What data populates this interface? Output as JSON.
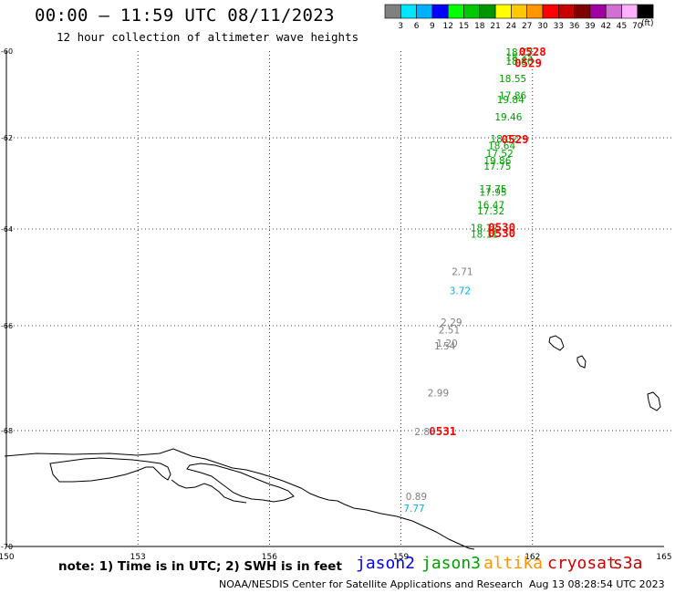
{
  "header": {
    "title": "00:00 – 11:59 UTC 08/11/2023",
    "subtitle": "12 hour collection of altimeter wave heights"
  },
  "legend": {
    "units": "(ft)",
    "ticks": [
      "3",
      "6",
      "9",
      "12",
      "15",
      "18",
      "21",
      "24",
      "27",
      "30",
      "33",
      "36",
      "39",
      "42",
      "45",
      "70"
    ],
    "colors": [
      "#808080",
      "#00e5ff",
      "#00b0ff",
      "#0000ff",
      "#00ff00",
      "#00c800",
      "#009600",
      "#ffff00",
      "#ffc800",
      "#ff9600",
      "#ff0000",
      "#c80000",
      "#800000",
      "#a000a0",
      "#d070d0",
      "#ffb0ff",
      "#000000"
    ]
  },
  "footer": {
    "note": "note: 1) Time is in UTC; 2) SWH is in feet",
    "credit": "NOAA/NESDIS Center for Satellite Applications and Research",
    "timestamp": "Aug 13 08:28:54 UTC 2023",
    "satellites": [
      {
        "name": "jason2",
        "color": "#0000ff"
      },
      {
        "name": "jason3",
        "color": "#00a000"
      },
      {
        "name": "altika",
        "color": "#ff9600"
      },
      {
        "name": "cryosat",
        "color": "#d00000"
      },
      {
        "name": "s3a",
        "color": "#c80000"
      }
    ]
  },
  "chart_data": {
    "type": "scatter",
    "title": "12 hour collection of altimeter wave heights",
    "x_ticks": [
      "150",
      "153",
      "156",
      "159",
      "162",
      "165"
    ],
    "y_ticks": [
      "-60",
      "-62",
      "-64",
      "-66",
      "-68",
      "-70"
    ],
    "xlim": [
      150,
      165
    ],
    "ylim": [
      -70,
      -60
    ],
    "grid": true,
    "series": [
      {
        "name": "jason3",
        "color": "#00a000",
        "points": [
          {
            "lon": 161.7,
            "lat": -60.1,
            "label": "18.77"
          },
          {
            "lon": 161.7,
            "lat": -60.22,
            "label": "18.35"
          },
          {
            "lon": 161.7,
            "lat": -60.32,
            "label": "18.86"
          },
          {
            "lon": 161.55,
            "lat": -60.72,
            "label": "18.55"
          },
          {
            "lon": 161.55,
            "lat": -61.1,
            "label": "17.86"
          },
          {
            "lon": 161.5,
            "lat": -61.2,
            "label": "19.84"
          },
          {
            "lon": 161.45,
            "lat": -61.6,
            "label": "19.46"
          },
          {
            "lon": 161.35,
            "lat": -62.1,
            "label": "18.02"
          },
          {
            "lon": 161.3,
            "lat": -62.25,
            "label": "18.64"
          },
          {
            "lon": 161.25,
            "lat": -62.42,
            "label": "17.52"
          },
          {
            "lon": 161.2,
            "lat": -62.58,
            "label": "19.86"
          },
          {
            "lon": 161.2,
            "lat": -62.7,
            "label": "17.75"
          },
          {
            "lon": 161.1,
            "lat": -63.2,
            "label": "17.75"
          },
          {
            "lon": 161.1,
            "lat": -63.27,
            "label": "17.95"
          },
          {
            "lon": 161.05,
            "lat": -63.55,
            "label": "16.47"
          },
          {
            "lon": 161.05,
            "lat": -63.68,
            "label": "17.32"
          },
          {
            "lon": 160.9,
            "lat": -64.05,
            "label": "18.12"
          },
          {
            "lon": 160.9,
            "lat": -64.18,
            "label": "18.11"
          }
        ]
      },
      {
        "name": "cryosat",
        "color": "#ff0000",
        "points": [
          {
            "lon": 162.0,
            "lat": -60.1,
            "label": "0528"
          },
          {
            "lon": 161.9,
            "lat": -60.37,
            "label": "0529"
          },
          {
            "lon": 161.6,
            "lat": -62.12,
            "label": "0529"
          },
          {
            "lon": 161.3,
            "lat": -64.05,
            "label": "0530"
          },
          {
            "lon": 161.3,
            "lat": -64.17,
            "label": "0530"
          },
          {
            "lon": 159.95,
            "lat": -68.08,
            "label": "0531"
          }
        ]
      },
      {
        "name": "gray",
        "color": "#808080",
        "points": [
          {
            "lon": 160.4,
            "lat": -64.95,
            "label": "2.71"
          },
          {
            "lon": 160.15,
            "lat": -66.0,
            "label": "2.29"
          },
          {
            "lon": 160.1,
            "lat": -66.15,
            "label": "2.51"
          },
          {
            "lon": 160.05,
            "lat": -66.4,
            "label": "1.20"
          },
          {
            "lon": 160.0,
            "lat": -66.45,
            "label": "1.54"
          },
          {
            "lon": 159.85,
            "lat": -67.35,
            "label": "2.99"
          },
          {
            "lon": 159.55,
            "lat": -68.08,
            "label": "2.83"
          },
          {
            "lon": 159.35,
            "lat": -69.2,
            "label": "0.89"
          }
        ]
      },
      {
        "name": "cyan",
        "color": "#00b0ff",
        "points": [
          {
            "lon": 160.35,
            "lat": -65.35,
            "label": "3.72"
          },
          {
            "lon": 159.3,
            "lat": -69.4,
            "label": "7.77"
          }
        ]
      }
    ]
  }
}
